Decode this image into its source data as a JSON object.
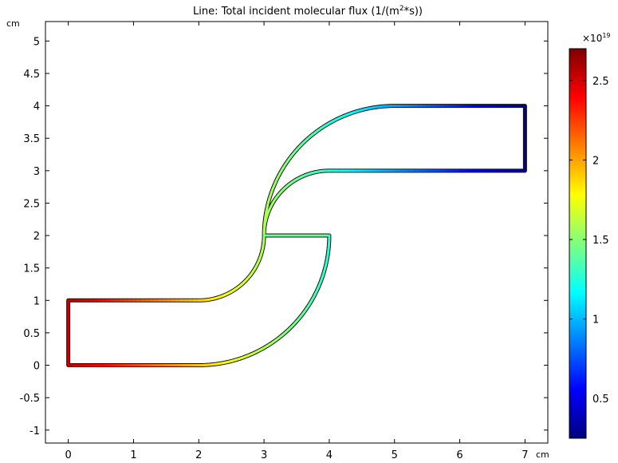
{
  "chart_data": {
    "type": "line",
    "title": "Line: Total incident molecular flux (1/(m",
    "title_sup": "2",
    "title_end": "*s))",
    "xlabel": "cm",
    "ylabel": "cm",
    "xlim": [
      -0.35,
      7.35
    ],
    "ylim": [
      -1.2,
      5.3
    ],
    "x_ticks": [
      "0",
      "1",
      "2",
      "3",
      "4",
      "5",
      "6",
      "7"
    ],
    "y_ticks": [
      "-1",
      "-0.5",
      "0",
      "0.5",
      "1",
      "1.5",
      "2",
      "2.5",
      "3",
      "3.5",
      "4",
      "4.5",
      "5"
    ],
    "colorbar": {
      "min": 0.25,
      "max": 2.7,
      "ticks": [
        "0.5",
        "1",
        "1.5",
        "2",
        "2.5"
      ],
      "exponent_base": "×10",
      "exponent": "19",
      "colormap": "rainbow"
    },
    "geometry": {
      "segments": [
        {
          "type": "line",
          "from": [
            0,
            0
          ],
          "to": [
            0,
            1
          ]
        },
        {
          "type": "line",
          "from": [
            0,
            1
          ],
          "to": [
            2,
            1
          ]
        },
        {
          "type": "arc",
          "center": [
            2,
            2
          ],
          "radius": 1,
          "from_deg": -90,
          "to_deg": 0
        },
        {
          "type": "arc",
          "center": [
            4,
            2
          ],
          "radius": 1,
          "from_deg": 180,
          "to_deg": 90
        },
        {
          "type": "line",
          "from": [
            4,
            3
          ],
          "to": [
            7,
            3
          ]
        },
        {
          "type": "line",
          "from": [
            7,
            3
          ],
          "to": [
            7,
            4
          ]
        },
        {
          "type": "line",
          "from": [
            7,
            4
          ],
          "to": [
            5,
            4
          ]
        },
        {
          "type": "arc",
          "center": [
            5,
            2
          ],
          "radius": 2,
          "from_deg": 90,
          "to_deg": 180
        },
        {
          "type": "arc",
          "center": [
            2,
            2
          ],
          "radius": 2,
          "from_deg": 0,
          "to_deg": -90
        },
        {
          "type": "line",
          "from": [
            2,
            0
          ],
          "to": [
            0,
            0
          ]
        }
      ]
    }
  }
}
